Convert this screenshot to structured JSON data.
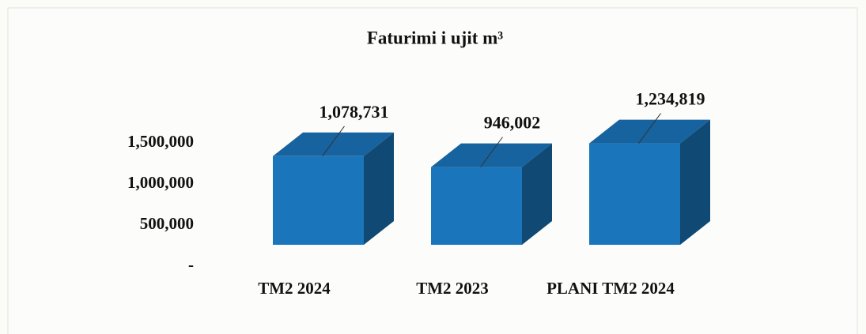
{
  "chart_data": {
    "type": "bar3d",
    "title": "Faturimi  i ujit m³",
    "categories": [
      "TM2 2024",
      "TM2 2023",
      "PLANI TM2 2024"
    ],
    "values": [
      1078731,
      946002,
      1234819
    ],
    "value_labels": [
      "1,078,731",
      "946,002",
      "1,234,819"
    ],
    "color": "#1a75bb",
    "ylim": [
      0,
      1500000
    ],
    "yticks": [
      {
        "value": 0,
        "label": "-"
      },
      {
        "value": 500000,
        "label": "500,000"
      },
      {
        "value": 1000000,
        "label": "1,000,000"
      },
      {
        "value": 1500000,
        "label": "1,500,000"
      }
    ],
    "grid": false
  }
}
